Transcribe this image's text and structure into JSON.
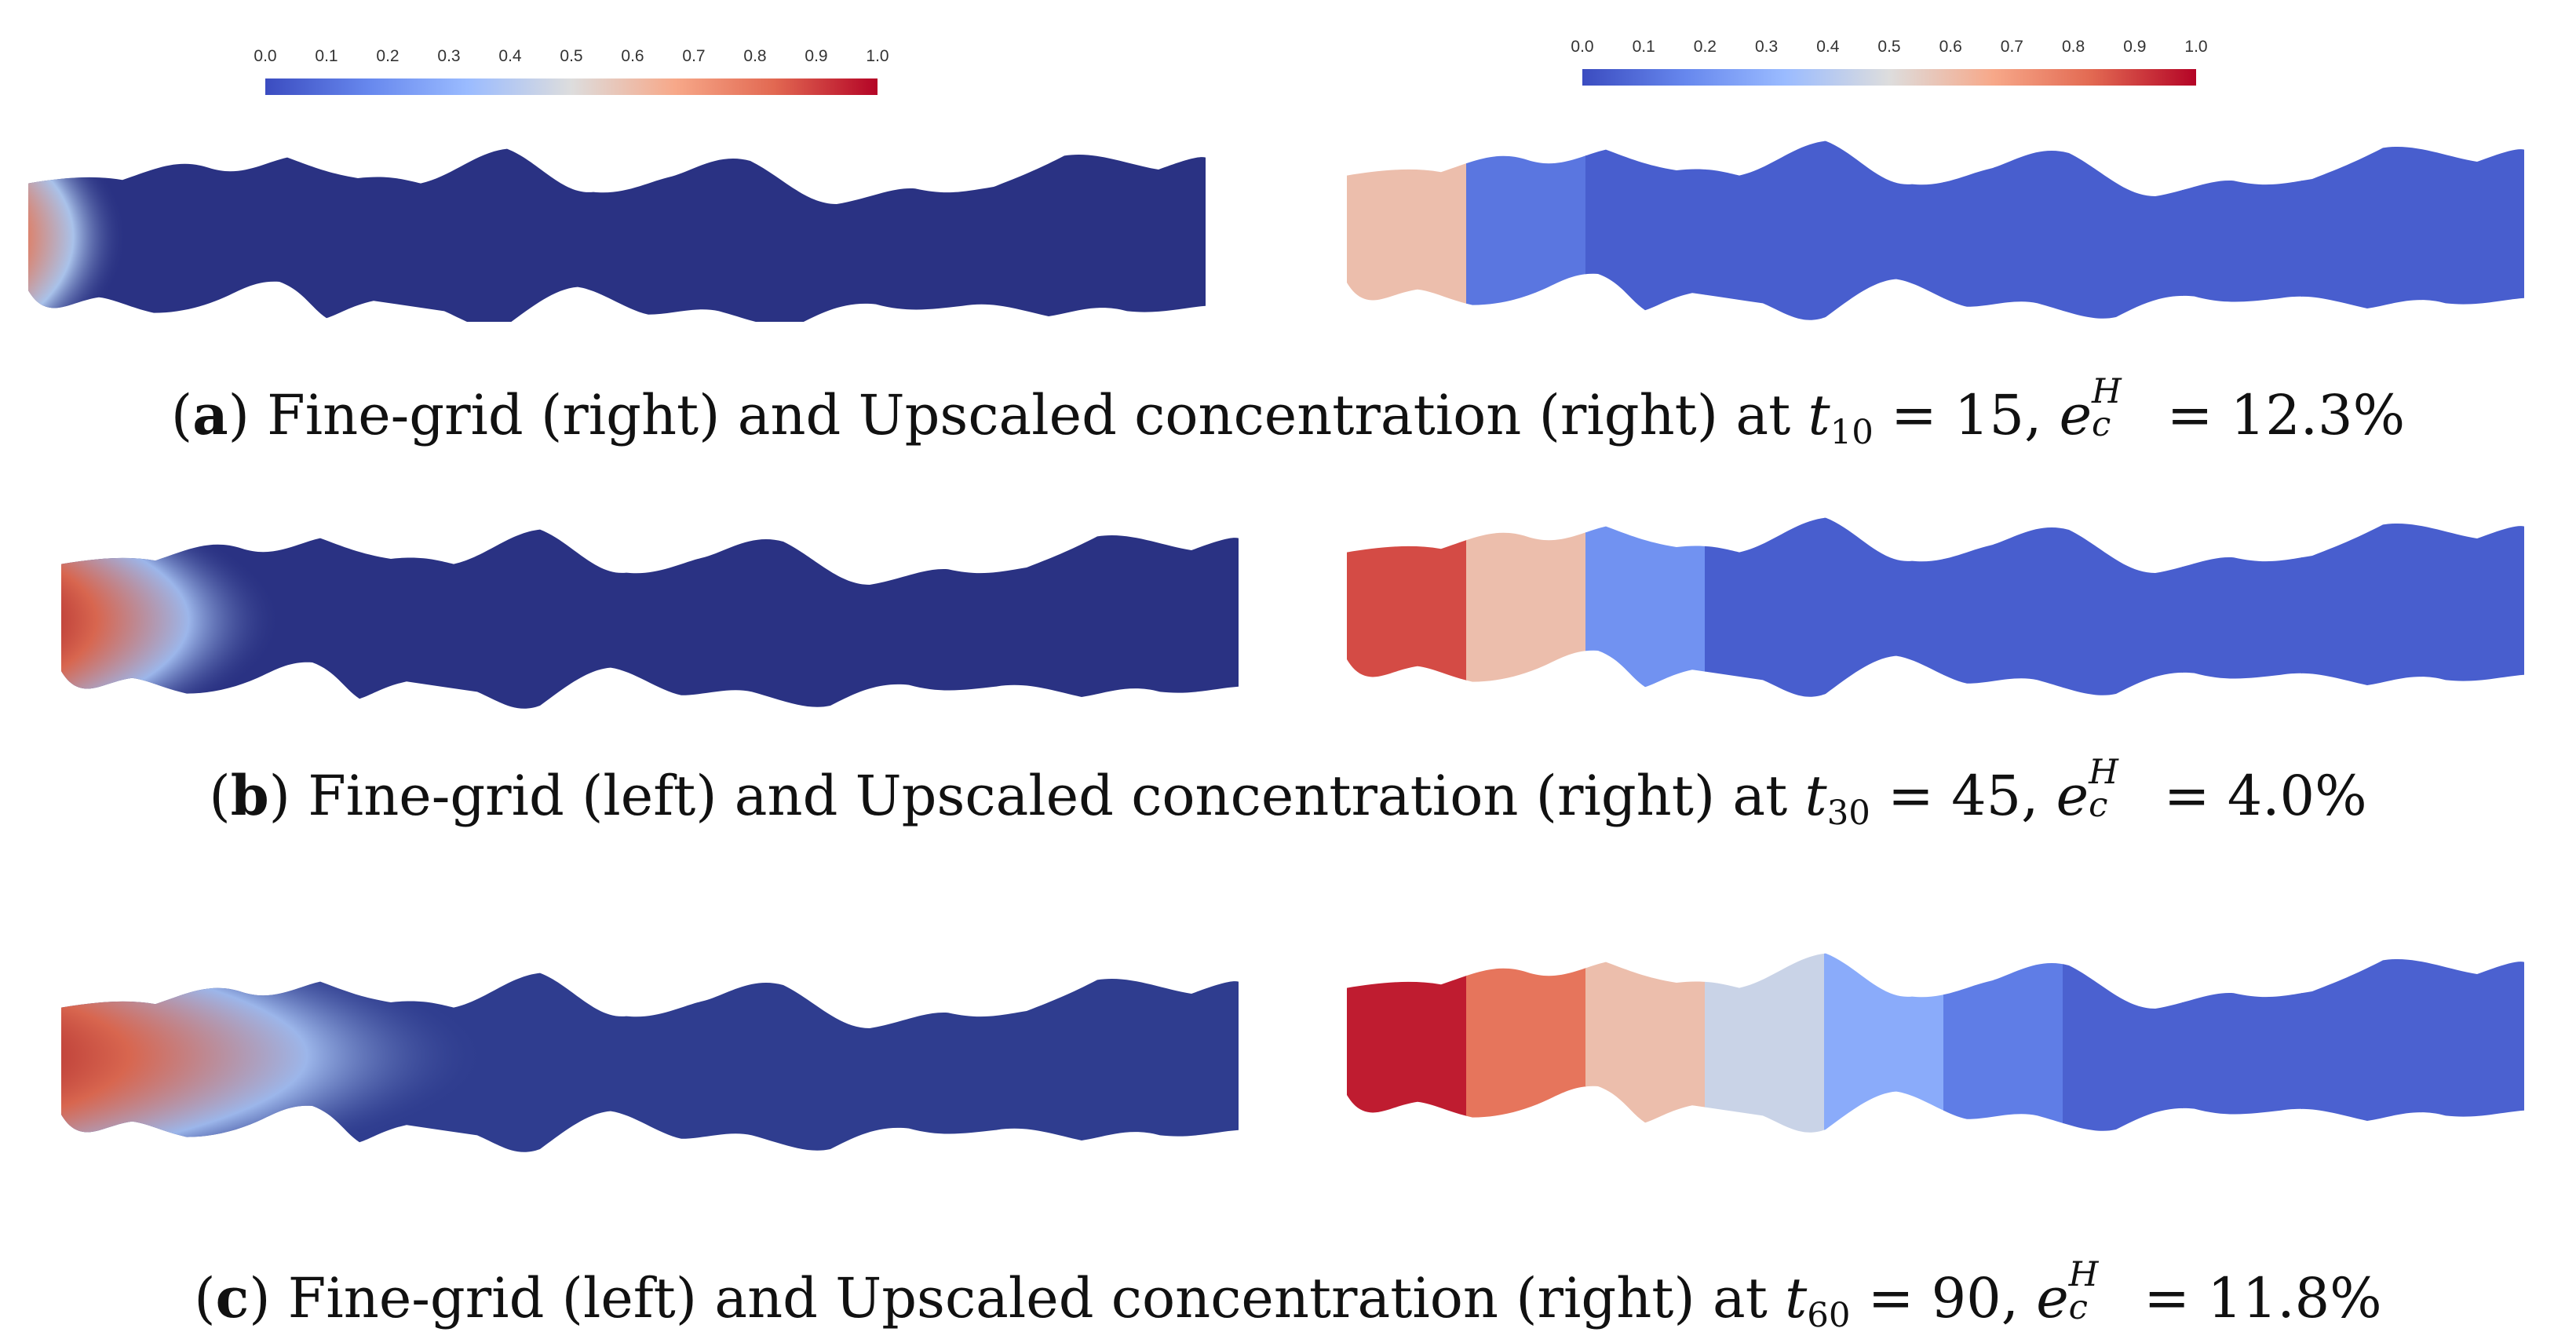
{
  "colorbar": {
    "ticks": [
      "0.0",
      "0.1",
      "0.2",
      "0.3",
      "0.4",
      "0.5",
      "0.6",
      "0.7",
      "0.8",
      "0.9",
      "1.0"
    ],
    "colors": [
      "#3b4cc0",
      "#7b9ff9",
      "#c0d4f5",
      "#dddddd",
      "#f2cbb7",
      "#ee8468",
      "#b40426"
    ]
  },
  "captions": {
    "a": {
      "label": "a",
      "text": "Fine-grid (right) and Upscaled concentration (right) at",
      "t_sub": "10",
      "t_value": "15,",
      "e_sup": "H",
      "e_sub": "c",
      "error": "12.3%"
    },
    "b": {
      "label": "b",
      "text": "Fine-grid (left) and Upscaled concentration (right) at",
      "t_sub": "30",
      "t_value": "45,",
      "e_sup": "H",
      "e_sub": "c",
      "error": "4.0%"
    },
    "c": {
      "label": "c",
      "text": "Fine-grid (left) and Upscaled concentration (right) at",
      "t_sub": "60",
      "t_value": "90,",
      "e_sup": "H",
      "e_sub": "c",
      "error": "11.8%"
    }
  },
  "upscaled_cell_concentrations": {
    "a": [
      0.6,
      0.12,
      0.05,
      0.05,
      0.05,
      0.05,
      0.05,
      0.05,
      0.05,
      0.05
    ],
    "b": [
      0.88,
      0.6,
      0.2,
      0.05,
      0.05,
      0.05,
      0.05,
      0.05,
      0.05,
      0.05
    ],
    "c": [
      0.96,
      0.8,
      0.6,
      0.45,
      0.28,
      0.14,
      0.06,
      0.06,
      0.06,
      0.06
    ]
  },
  "fine_grid_front": {
    "a": 0.1,
    "b": 0.25,
    "c": 0.52
  }
}
